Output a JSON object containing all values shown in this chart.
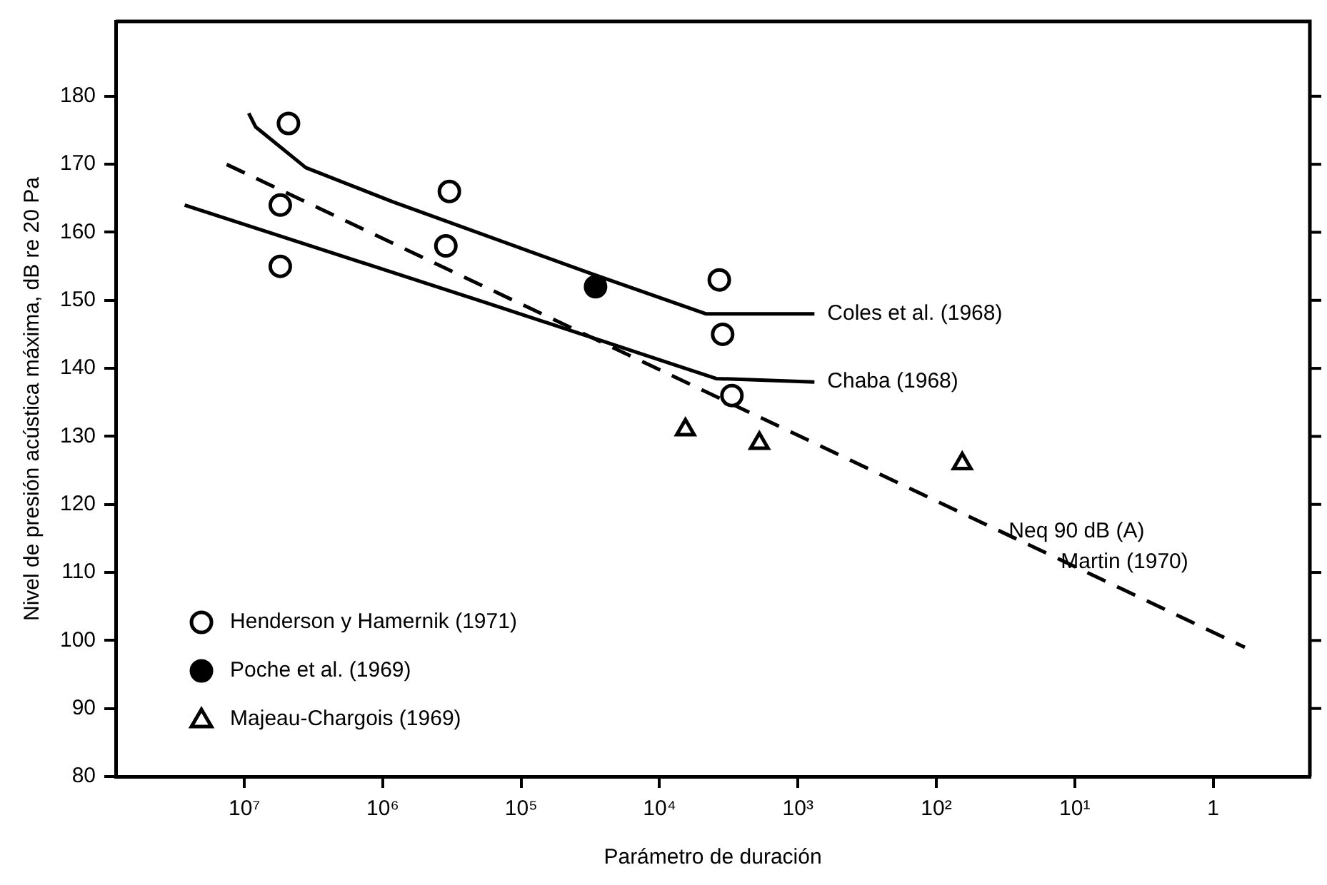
{
  "chart_data": {
    "type": "scatter",
    "xlabel": "Parámetro de duración",
    "ylabel": "Nivel de presión acústica máxima, dB re 20 Pa",
    "log": "x",
    "xlim": [
      85000000,
      0.2
    ],
    "ylim": [
      80,
      191
    ],
    "xticks": [
      {
        "value": 10000000,
        "label": "10⁷"
      },
      {
        "value": 1000000,
        "label": "10⁶"
      },
      {
        "value": 100000,
        "label": "10⁵"
      },
      {
        "value": 10000,
        "label": "10⁴"
      },
      {
        "value": 1000,
        "label": "10³"
      },
      {
        "value": 100,
        "label": "10²"
      },
      {
        "value": 10,
        "label": "10¹"
      },
      {
        "value": 1,
        "label": "1"
      }
    ],
    "yticks": [
      80,
      90,
      100,
      110,
      120,
      130,
      140,
      150,
      160,
      170,
      180
    ],
    "legend": "bottom left",
    "grid": false,
    "series": [
      {
        "name": "Henderson y Hamernik (1971)",
        "marker": "circle",
        "color": "#ffffff",
        "x": [
          4800000,
          5500000,
          5500000,
          330000,
          350000,
          3700,
          3500,
          3000
        ],
        "values": [
          176,
          164,
          155,
          166,
          158,
          153,
          145,
          136
        ]
      },
      {
        "name": "Poche et al. (1969)",
        "marker": "circle",
        "color": "#000000",
        "x": [
          29000
        ],
        "values": [
          152
        ]
      },
      {
        "name": "Majeau-Chargois (1969)",
        "marker": "triangle",
        "color": "#ffffff",
        "x": [
          6500,
          1900,
          65
        ],
        "values": [
          131,
          129,
          126
        ]
      },
      {
        "name": "Coles et al. (1968)",
        "type": "line",
        "line_style": "solid",
        "color": "#000000",
        "x": [
          9300000,
          8300000,
          3600000,
          850000,
          32000,
          4600,
          760
        ],
        "values": [
          177.5,
          175.5,
          169.5,
          164.5,
          154,
          148,
          148
        ]
      },
      {
        "name": "Chaba (1968)",
        "type": "line",
        "line_style": "solid",
        "color": "#000000",
        "x": [
          27000000,
          170000,
          3900,
          760
        ],
        "values": [
          164,
          149.5,
          138.5,
          138
        ]
      },
      {
        "type": "line",
        "line_style": "dashed",
        "color": "#000000",
        "x": [
          13500000,
          0.59
        ],
        "values": [
          170,
          99
        ]
      }
    ],
    "annotations": [
      {
        "text": "Neq 90 dB (A)",
        "x": 30,
        "y": 116
      },
      {
        "text": "Martin (1970)",
        "x": 12.6,
        "y": 111.5
      }
    ]
  }
}
